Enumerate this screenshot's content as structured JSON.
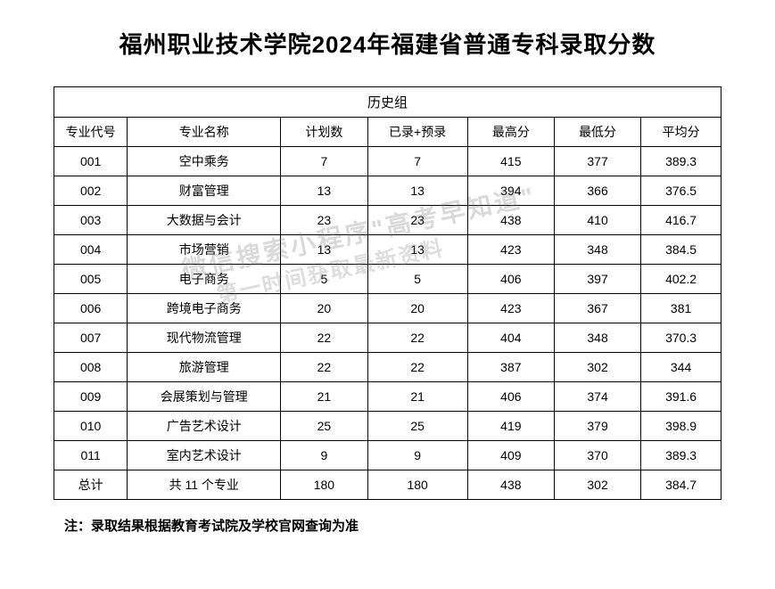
{
  "title": "福州职业技术学院2024年福建省普通专科录取分数",
  "table": {
    "group_header": "历史组",
    "columns": [
      "专业代号",
      "专业名称",
      "计划数",
      "已录+预录",
      "最高分",
      "最低分",
      "平均分"
    ],
    "column_widths_pct": [
      11,
      23,
      13,
      15,
      13,
      13,
      12
    ],
    "rows": [
      {
        "code": "001",
        "name": "空中乘务",
        "plan": "7",
        "admitted": "7",
        "max": "415",
        "min": "377",
        "avg": "389.3"
      },
      {
        "code": "002",
        "name": "财富管理",
        "plan": "13",
        "admitted": "13",
        "max": "394",
        "min": "366",
        "avg": "376.5"
      },
      {
        "code": "003",
        "name": "大数据与会计",
        "plan": "23",
        "admitted": "23",
        "max": "438",
        "min": "410",
        "avg": "416.7"
      },
      {
        "code": "004",
        "name": "市场营销",
        "plan": "13",
        "admitted": "13",
        "max": "423",
        "min": "348",
        "avg": "384.5"
      },
      {
        "code": "005",
        "name": "电子商务",
        "plan": "5",
        "admitted": "5",
        "max": "406",
        "min": "397",
        "avg": "402.2"
      },
      {
        "code": "006",
        "name": "跨境电子商务",
        "plan": "20",
        "admitted": "20",
        "max": "423",
        "min": "367",
        "avg": "381"
      },
      {
        "code": "007",
        "name": "现代物流管理",
        "plan": "22",
        "admitted": "22",
        "max": "404",
        "min": "348",
        "avg": "370.3"
      },
      {
        "code": "008",
        "name": "旅游管理",
        "plan": "22",
        "admitted": "22",
        "max": "387",
        "min": "302",
        "avg": "344"
      },
      {
        "code": "009",
        "name": "会展策划与管理",
        "plan": "21",
        "admitted": "21",
        "max": "406",
        "min": "374",
        "avg": "391.6"
      },
      {
        "code": "010",
        "name": "广告艺术设计",
        "plan": "25",
        "admitted": "25",
        "max": "419",
        "min": "379",
        "avg": "398.9"
      },
      {
        "code": "011",
        "name": "室内艺术设计",
        "plan": "9",
        "admitted": "9",
        "max": "409",
        "min": "370",
        "avg": "389.3"
      }
    ],
    "total": {
      "code": "总计",
      "name": "共 11 个专业",
      "plan": "180",
      "admitted": "180",
      "max": "438",
      "min": "302",
      "avg": "384.7"
    }
  },
  "note": "注：录取结果根据教育考试院及学校官网查询为准",
  "watermark": {
    "line1": "微信搜索小程序\"高考早知道\"",
    "line2": "第一时间获取最新资料"
  },
  "styling": {
    "background_color": "#ffffff",
    "title_fontsize": 26,
    "title_color": "#000000",
    "cell_fontsize": 14,
    "border_color": "#000000",
    "note_fontsize": 15,
    "watermark_color": "rgba(120,120,120,0.28)",
    "watermark_rotation_deg": -12
  }
}
